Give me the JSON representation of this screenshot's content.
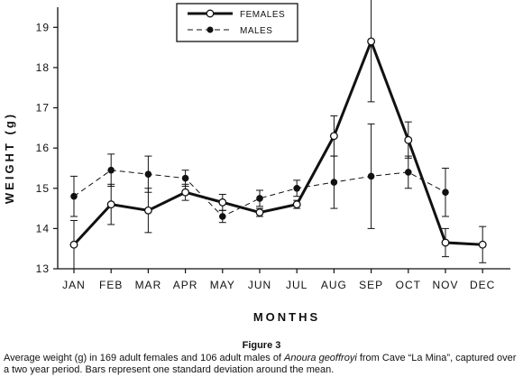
{
  "chart_data": {
    "type": "line",
    "xlabel": "MONTHS",
    "ylabel": "WEIGHT (g)",
    "ylim": [
      13,
      19.5
    ],
    "yticks": [
      13,
      14,
      15,
      16,
      17,
      18,
      19
    ],
    "categories": [
      "JAN",
      "FEB",
      "MAR",
      "APR",
      "MAY",
      "JUN",
      "JUL",
      "AUG",
      "SEP",
      "OCT",
      "NOV",
      "DEC"
    ],
    "legend_position": "top-center",
    "grid": false,
    "series": [
      {
        "name": "FEMALES",
        "style": "solid-thick",
        "marker": "open-circle",
        "values": [
          13.6,
          14.6,
          14.45,
          14.9,
          14.65,
          14.4,
          14.6,
          16.3,
          18.65,
          16.2,
          13.65,
          13.6
        ],
        "error": [
          0.6,
          0.5,
          0.55,
          0.2,
          0.2,
          0.1,
          0.1,
          0.5,
          1.5,
          0.45,
          0.35,
          0.45
        ]
      },
      {
        "name": "MALES",
        "style": "dashed",
        "marker": "filled-circle",
        "values": [
          14.8,
          15.45,
          15.35,
          15.25,
          14.3,
          14.75,
          15.0,
          15.15,
          15.3,
          15.4,
          14.9,
          null
        ],
        "error": [
          0.5,
          0.4,
          0.45,
          0.2,
          0.15,
          0.2,
          0.2,
          0.65,
          1.3,
          0.4,
          0.6,
          null
        ]
      }
    ]
  },
  "caption": {
    "figure_label": "Figure 3",
    "text_before": "Average weight (g) in 169 adult females and 106 adult males of ",
    "text_italic": "Anoura geoffroyi",
    "text_after": " from Cave “La Mina”, captured over a two year period. Bars represent one standard deviation around the mean."
  }
}
